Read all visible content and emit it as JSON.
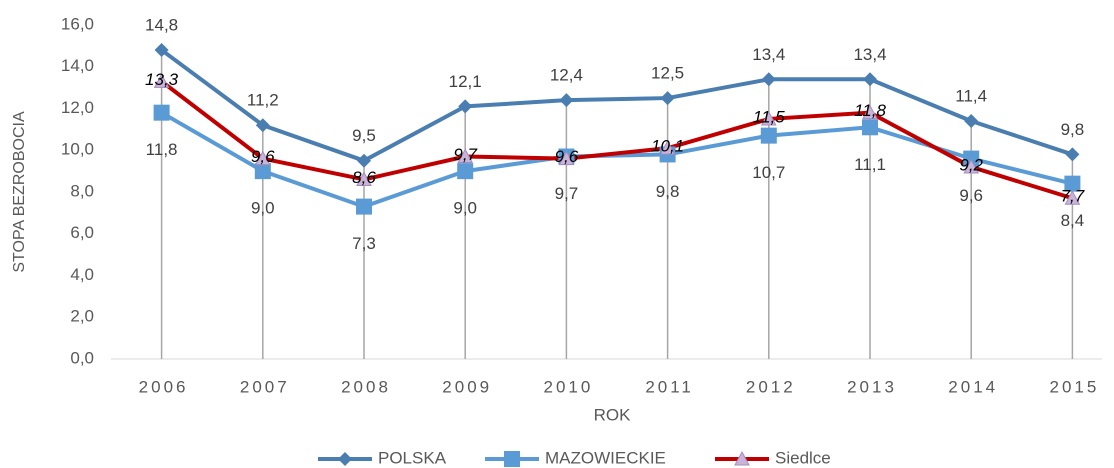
{
  "chart_data": {
    "type": "line",
    "x_label": "ROK",
    "y_label": "STOPA BEZROBOCIA",
    "categories": [
      "2006",
      "2007",
      "2008",
      "2009",
      "2010",
      "2011",
      "2012",
      "2013",
      "2014",
      "2015"
    ],
    "series": [
      {
        "name": "POLSKA",
        "color": "#4a7eb0",
        "marker": "diamond",
        "values": [
          14.8,
          11.2,
          9.5,
          12.1,
          12.4,
          12.5,
          13.4,
          13.4,
          11.4,
          9.8
        ],
        "value_labels": [
          "14,8",
          "11,2",
          "9,5",
          "12,1",
          "12,4",
          "12,5",
          "13,4",
          "13,4",
          "11,4",
          "9,8"
        ]
      },
      {
        "name": "MAZOWIECKIE",
        "color": "#5b9bd5",
        "marker": "square",
        "values": [
          11.8,
          9.0,
          7.3,
          9.0,
          9.7,
          9.8,
          10.7,
          11.1,
          9.6,
          8.4
        ],
        "value_labels": [
          "11,8",
          "9,0",
          "7,3",
          "9,0",
          "9,7",
          "9,8",
          "10,7",
          "11,1",
          "9,6",
          "8,4"
        ]
      },
      {
        "name": "Siedlce",
        "color": "#c00000",
        "marker": "triangle",
        "values": [
          13.3,
          9.6,
          8.6,
          9.7,
          9.6,
          10.1,
          11.5,
          11.8,
          9.2,
          7.7
        ],
        "value_labels": [
          "13,3",
          "9,6",
          "8,6",
          "9,7",
          "9,6",
          "10,1",
          "11,5",
          "11,8",
          "9,2",
          "7,7"
        ]
      }
    ],
    "ylim": [
      0,
      16
    ],
    "yticks": [
      {
        "value": 0,
        "label": "0,0"
      },
      {
        "value": 2,
        "label": "2,0"
      },
      {
        "value": 4,
        "label": "4,0"
      },
      {
        "value": 6,
        "label": "6,0"
      },
      {
        "value": 8,
        "label": "8,0"
      },
      {
        "value": 10,
        "label": "10,0"
      },
      {
        "value": 12,
        "label": "12,0"
      },
      {
        "value": 14,
        "label": "14,0"
      },
      {
        "value": 16,
        "label": "16,0"
      }
    ],
    "grid": false,
    "drop_lines": true,
    "legend": "bottom"
  }
}
